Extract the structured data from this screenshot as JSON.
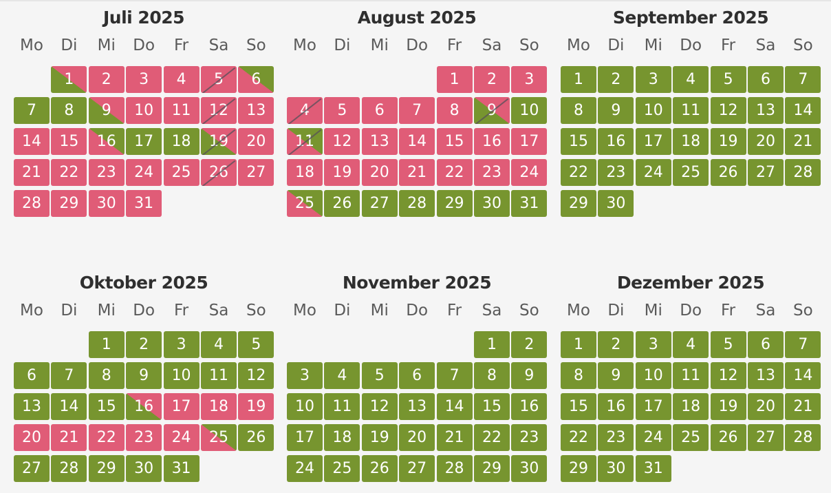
{
  "weekdays": [
    "Mo",
    "Di",
    "Mi",
    "Do",
    "Fr",
    "Sa",
    "So"
  ],
  "colors": {
    "available": "#77952f",
    "booked": "#e05c77",
    "background": "#f5f5f5"
  },
  "legend_states": {
    "g": "available",
    "r": "booked",
    "rg": "arrival-day (booked until, available after)",
    "gr": "departure-day (available until, booked after)"
  },
  "months": [
    {
      "title": "Juli 2025",
      "offset": 1,
      "days": [
        {
          "n": "1",
          "s": "gr"
        },
        {
          "n": "2",
          "s": "r"
        },
        {
          "n": "3",
          "s": "r"
        },
        {
          "n": "4",
          "s": "r"
        },
        {
          "n": "5",
          "s": "r",
          "x": true
        },
        {
          "n": "6",
          "s": "rg"
        },
        {
          "n": "7",
          "s": "g"
        },
        {
          "n": "8",
          "s": "g"
        },
        {
          "n": "9",
          "s": "gr"
        },
        {
          "n": "10",
          "s": "r"
        },
        {
          "n": "11",
          "s": "r"
        },
        {
          "n": "12",
          "s": "r",
          "x": true
        },
        {
          "n": "13",
          "s": "r"
        },
        {
          "n": "14",
          "s": "r"
        },
        {
          "n": "15",
          "s": "r"
        },
        {
          "n": "16",
          "s": "rg"
        },
        {
          "n": "17",
          "s": "g"
        },
        {
          "n": "18",
          "s": "g"
        },
        {
          "n": "19",
          "s": "gr",
          "x": true
        },
        {
          "n": "20",
          "s": "r"
        },
        {
          "n": "21",
          "s": "r"
        },
        {
          "n": "22",
          "s": "r"
        },
        {
          "n": "23",
          "s": "r"
        },
        {
          "n": "24",
          "s": "r"
        },
        {
          "n": "25",
          "s": "r"
        },
        {
          "n": "26",
          "s": "r",
          "x": true
        },
        {
          "n": "27",
          "s": "r"
        },
        {
          "n": "28",
          "s": "r"
        },
        {
          "n": "29",
          "s": "r"
        },
        {
          "n": "30",
          "s": "r"
        },
        {
          "n": "31",
          "s": "r"
        }
      ]
    },
    {
      "title": "August 2025",
      "offset": 4,
      "days": [
        {
          "n": "1",
          "s": "r"
        },
        {
          "n": "2",
          "s": "r"
        },
        {
          "n": "3",
          "s": "r"
        },
        {
          "n": "4",
          "s": "r",
          "x": true
        },
        {
          "n": "5",
          "s": "r"
        },
        {
          "n": "6",
          "s": "r"
        },
        {
          "n": "7",
          "s": "r"
        },
        {
          "n": "8",
          "s": "r"
        },
        {
          "n": "9",
          "s": "gr",
          "x": true
        },
        {
          "n": "10",
          "s": "g"
        },
        {
          "n": "11",
          "s": "rg",
          "x": true
        },
        {
          "n": "12",
          "s": "r"
        },
        {
          "n": "13",
          "s": "r"
        },
        {
          "n": "14",
          "s": "r"
        },
        {
          "n": "15",
          "s": "r"
        },
        {
          "n": "16",
          "s": "r"
        },
        {
          "n": "17",
          "s": "r"
        },
        {
          "n": "18",
          "s": "r"
        },
        {
          "n": "19",
          "s": "r"
        },
        {
          "n": "20",
          "s": "r"
        },
        {
          "n": "21",
          "s": "r"
        },
        {
          "n": "22",
          "s": "r"
        },
        {
          "n": "23",
          "s": "r"
        },
        {
          "n": "24",
          "s": "r"
        },
        {
          "n": "25",
          "s": "rg"
        },
        {
          "n": "26",
          "s": "g"
        },
        {
          "n": "27",
          "s": "g"
        },
        {
          "n": "28",
          "s": "g"
        },
        {
          "n": "29",
          "s": "g"
        },
        {
          "n": "30",
          "s": "g"
        },
        {
          "n": "31",
          "s": "g"
        }
      ]
    },
    {
      "title": "September 2025",
      "offset": 0,
      "days": [
        {
          "n": "1",
          "s": "g"
        },
        {
          "n": "2",
          "s": "g"
        },
        {
          "n": "3",
          "s": "g"
        },
        {
          "n": "4",
          "s": "g"
        },
        {
          "n": "5",
          "s": "g"
        },
        {
          "n": "6",
          "s": "g"
        },
        {
          "n": "7",
          "s": "g"
        },
        {
          "n": "8",
          "s": "g"
        },
        {
          "n": "9",
          "s": "g"
        },
        {
          "n": "10",
          "s": "g"
        },
        {
          "n": "11",
          "s": "g"
        },
        {
          "n": "12",
          "s": "g"
        },
        {
          "n": "13",
          "s": "g"
        },
        {
          "n": "14",
          "s": "g"
        },
        {
          "n": "15",
          "s": "g"
        },
        {
          "n": "16",
          "s": "g"
        },
        {
          "n": "17",
          "s": "g"
        },
        {
          "n": "18",
          "s": "g"
        },
        {
          "n": "19",
          "s": "g"
        },
        {
          "n": "20",
          "s": "g"
        },
        {
          "n": "21",
          "s": "g"
        },
        {
          "n": "22",
          "s": "g"
        },
        {
          "n": "23",
          "s": "g"
        },
        {
          "n": "24",
          "s": "g"
        },
        {
          "n": "25",
          "s": "g"
        },
        {
          "n": "26",
          "s": "g"
        },
        {
          "n": "27",
          "s": "g"
        },
        {
          "n": "28",
          "s": "g"
        },
        {
          "n": "29",
          "s": "g"
        },
        {
          "n": "30",
          "s": "g"
        }
      ]
    },
    {
      "title": "Oktober 2025",
      "offset": 2,
      "days": [
        {
          "n": "1",
          "s": "g"
        },
        {
          "n": "2",
          "s": "g"
        },
        {
          "n": "3",
          "s": "g"
        },
        {
          "n": "4",
          "s": "g"
        },
        {
          "n": "5",
          "s": "g"
        },
        {
          "n": "6",
          "s": "g"
        },
        {
          "n": "7",
          "s": "g"
        },
        {
          "n": "8",
          "s": "g"
        },
        {
          "n": "9",
          "s": "g"
        },
        {
          "n": "10",
          "s": "g"
        },
        {
          "n": "11",
          "s": "g"
        },
        {
          "n": "12",
          "s": "g"
        },
        {
          "n": "13",
          "s": "g"
        },
        {
          "n": "14",
          "s": "g"
        },
        {
          "n": "15",
          "s": "g"
        },
        {
          "n": "16",
          "s": "gr"
        },
        {
          "n": "17",
          "s": "r"
        },
        {
          "n": "18",
          "s": "r"
        },
        {
          "n": "19",
          "s": "r"
        },
        {
          "n": "20",
          "s": "r"
        },
        {
          "n": "21",
          "s": "r"
        },
        {
          "n": "22",
          "s": "r"
        },
        {
          "n": "23",
          "s": "r"
        },
        {
          "n": "24",
          "s": "r"
        },
        {
          "n": "25",
          "s": "rg"
        },
        {
          "n": "26",
          "s": "g"
        },
        {
          "n": "27",
          "s": "g"
        },
        {
          "n": "28",
          "s": "g"
        },
        {
          "n": "29",
          "s": "g"
        },
        {
          "n": "30",
          "s": "g"
        },
        {
          "n": "31",
          "s": "g"
        }
      ]
    },
    {
      "title": "November 2025",
      "offset": 5,
      "days": [
        {
          "n": "1",
          "s": "g"
        },
        {
          "n": "2",
          "s": "g"
        },
        {
          "n": "3",
          "s": "g"
        },
        {
          "n": "4",
          "s": "g"
        },
        {
          "n": "5",
          "s": "g"
        },
        {
          "n": "6",
          "s": "g"
        },
        {
          "n": "7",
          "s": "g"
        },
        {
          "n": "8",
          "s": "g"
        },
        {
          "n": "9",
          "s": "g"
        },
        {
          "n": "10",
          "s": "g"
        },
        {
          "n": "11",
          "s": "g"
        },
        {
          "n": "12",
          "s": "g"
        },
        {
          "n": "13",
          "s": "g"
        },
        {
          "n": "14",
          "s": "g"
        },
        {
          "n": "15",
          "s": "g"
        },
        {
          "n": "16",
          "s": "g"
        },
        {
          "n": "17",
          "s": "g"
        },
        {
          "n": "18",
          "s": "g"
        },
        {
          "n": "19",
          "s": "g"
        },
        {
          "n": "20",
          "s": "g"
        },
        {
          "n": "21",
          "s": "g"
        },
        {
          "n": "22",
          "s": "g"
        },
        {
          "n": "23",
          "s": "g"
        },
        {
          "n": "24",
          "s": "g"
        },
        {
          "n": "25",
          "s": "g"
        },
        {
          "n": "26",
          "s": "g"
        },
        {
          "n": "27",
          "s": "g"
        },
        {
          "n": "28",
          "s": "g"
        },
        {
          "n": "29",
          "s": "g"
        },
        {
          "n": "30",
          "s": "g"
        }
      ]
    },
    {
      "title": "Dezember 2025",
      "offset": 0,
      "days": [
        {
          "n": "1",
          "s": "g"
        },
        {
          "n": "2",
          "s": "g"
        },
        {
          "n": "3",
          "s": "g"
        },
        {
          "n": "4",
          "s": "g"
        },
        {
          "n": "5",
          "s": "g"
        },
        {
          "n": "6",
          "s": "g"
        },
        {
          "n": "7",
          "s": "g"
        },
        {
          "n": "8",
          "s": "g"
        },
        {
          "n": "9",
          "s": "g"
        },
        {
          "n": "10",
          "s": "g"
        },
        {
          "n": "11",
          "s": "g"
        },
        {
          "n": "12",
          "s": "g"
        },
        {
          "n": "13",
          "s": "g"
        },
        {
          "n": "14",
          "s": "g"
        },
        {
          "n": "15",
          "s": "g"
        },
        {
          "n": "16",
          "s": "g"
        },
        {
          "n": "17",
          "s": "g"
        },
        {
          "n": "18",
          "s": "g"
        },
        {
          "n": "19",
          "s": "g"
        },
        {
          "n": "20",
          "s": "g"
        },
        {
          "n": "21",
          "s": "g"
        },
        {
          "n": "22",
          "s": "g"
        },
        {
          "n": "23",
          "s": "g"
        },
        {
          "n": "24",
          "s": "g"
        },
        {
          "n": "25",
          "s": "g"
        },
        {
          "n": "26",
          "s": "g"
        },
        {
          "n": "27",
          "s": "g"
        },
        {
          "n": "28",
          "s": "g"
        },
        {
          "n": "29",
          "s": "g"
        },
        {
          "n": "30",
          "s": "g"
        },
        {
          "n": "31",
          "s": "g"
        }
      ]
    }
  ]
}
